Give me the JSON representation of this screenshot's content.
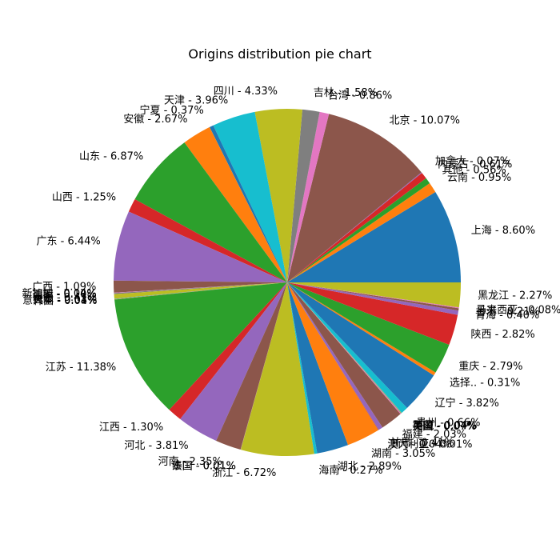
{
  "chart_data": {
    "type": "pie",
    "title": "Origins distribution pie chart",
    "start_angle_deg": 0,
    "direction": "counterclockwise",
    "slices": [
      {
        "label": "上海 - 8.60%",
        "value": 8.6,
        "color": "#1f77b4"
      },
      {
        "label": "云南 - 0.95%",
        "value": 0.95,
        "color": "#ff7f0e"
      },
      {
        "label": "其他 - 0.56%",
        "value": 0.56,
        "color": "#2ca02c"
      },
      {
        "label": "内蒙古 - 0.61%",
        "value": 0.61,
        "color": "#d62728"
      },
      {
        "label": "加拿大 - 0.07%",
        "value": 0.07,
        "color": "#9467bd"
      },
      {
        "label": "北京 - 10.07%",
        "value": 10.07,
        "color": "#8c564b"
      },
      {
        "label": "台湾 - 0.86%",
        "value": 0.86,
        "color": "#e377c2"
      },
      {
        "label": "吉林 - 1.58%",
        "value": 1.58,
        "color": "#7f7f7f"
      },
      {
        "label": "四川 - 4.33%",
        "value": 4.33,
        "color": "#bcbd22"
      },
      {
        "label": "天津 - 3.96%",
        "value": 3.96,
        "color": "#17becf"
      },
      {
        "label": "宁夏 - 0.37%",
        "value": 0.37,
        "color": "#1f77b4"
      },
      {
        "label": "安徽 - 2.67%",
        "value": 2.67,
        "color": "#ff7f0e"
      },
      {
        "label": "山东 - 6.87%",
        "value": 6.87,
        "color": "#2ca02c"
      },
      {
        "label": "山西 - 1.25%",
        "value": 1.25,
        "color": "#d62728"
      },
      {
        "label": "广东 - 6.44%",
        "value": 6.44,
        "color": "#9467bd"
      },
      {
        "label": "广西 - 1.09%",
        "value": 1.09,
        "color": "#8c564b"
      },
      {
        "label": "新加坡 - 0.04%",
        "value": 0.04,
        "color": "#e377c2"
      },
      {
        "label": "德国 - 0.10%",
        "value": 0.1,
        "color": "#7f7f7f"
      },
      {
        "label": "新疆 - 0.41%",
        "value": 0.41,
        "color": "#bcbd22"
      },
      {
        "label": "日本 - 0.03%",
        "value": 0.03,
        "color": "#17becf"
      },
      {
        "label": "意大利 - 0.01%",
        "value": 0.01,
        "color": "#1f77b4"
      },
      {
        "label": "韩国 - 0.04%",
        "value": 0.04,
        "color": "#ff7f0e"
      },
      {
        "label": "江苏 - 11.38%",
        "value": 11.38,
        "color": "#2ca02c"
      },
      {
        "label": "江西 - 1.30%",
        "value": 1.3,
        "color": "#d62728"
      },
      {
        "label": "河北 - 3.81%",
        "value": 3.81,
        "color": "#9467bd"
      },
      {
        "label": "河南 - 2.35%",
        "value": 2.35,
        "color": "#8c564b"
      },
      {
        "label": "法国 - 0.01%",
        "value": 0.01,
        "color": "#e377c2"
      },
      {
        "label": "泰国 - 0.01%",
        "value": 0.01,
        "color": "#7f7f7f"
      },
      {
        "label": "浙江 - 6.72%",
        "value": 6.72,
        "color": "#bcbd22"
      },
      {
        "label": "海南 - 0.27%",
        "value": 0.27,
        "color": "#17becf"
      },
      {
        "label": "湖北 - 2.89%",
        "value": 2.89,
        "color": "#1f77b4"
      },
      {
        "label": "湖南 - 3.05%",
        "value": 3.05,
        "color": "#ff7f0e"
      },
      {
        "label": "澳大利亚 - 0.01%",
        "value": 0.01,
        "color": "#2ca02c"
      },
      {
        "label": "澳门 - 0.04%",
        "value": 0.04,
        "color": "#d62728"
      },
      {
        "label": "甘肃 - 0.41%",
        "value": 0.41,
        "color": "#9467bd"
      },
      {
        "label": "福建 - 2.03%",
        "value": 2.03,
        "color": "#8c564b"
      },
      {
        "label": "美国 - 0.07%",
        "value": 0.07,
        "color": "#e377c2"
      },
      {
        "label": "英国 - 0.04%",
        "value": 0.04,
        "color": "#7f7f7f"
      },
      {
        "label": "西藏 - 0.04%",
        "value": 0.04,
        "color": "#bcbd22"
      },
      {
        "label": "贵州 - 0.66%",
        "value": 0.66,
        "color": "#17becf"
      },
      {
        "label": "辽宁 - 3.82%",
        "value": 3.82,
        "color": "#1f77b4"
      },
      {
        "label": "选择.. - 0.31%",
        "value": 0.31,
        "color": "#ff7f0e"
      },
      {
        "label": "重庆 - 2.79%",
        "value": 2.79,
        "color": "#2ca02c"
      },
      {
        "label": "陕西 - 2.82%",
        "value": 2.82,
        "color": "#d62728"
      },
      {
        "label": "青海 - 0.40%",
        "value": 0.4,
        "color": "#9467bd"
      },
      {
        "label": "香港 - 0.21%",
        "value": 0.21,
        "color": "#8c564b"
      },
      {
        "label": "马来西亚 - 0.08%",
        "value": 0.08,
        "color": "#e377c2"
      },
      {
        "label": "黑龙江 - 2.27%",
        "value": 2.27,
        "color": "#bcbd22"
      }
    ]
  }
}
